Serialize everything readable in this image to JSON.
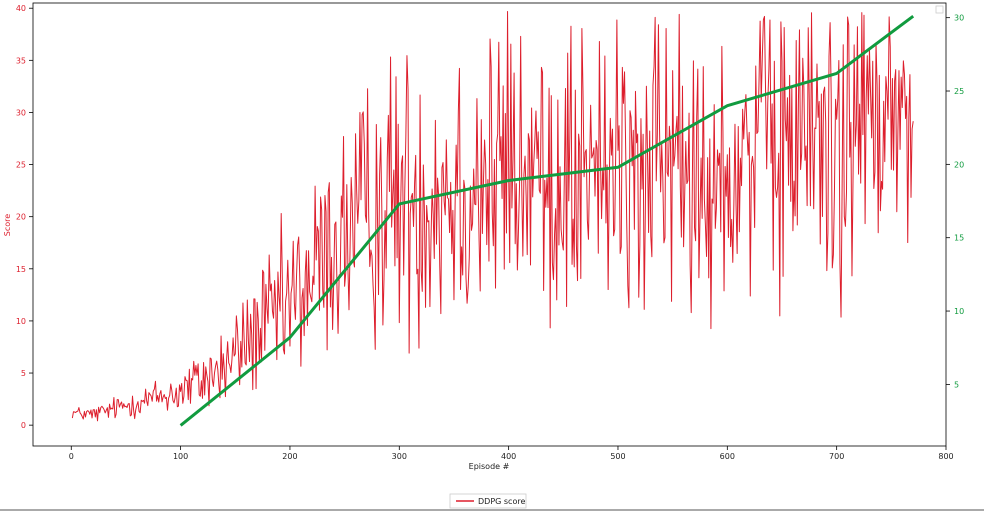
{
  "chart_data": {
    "type": "line",
    "title": "",
    "xlabel": "Episode #",
    "ylabel_left": "Score",
    "ylabel_right": "",
    "xlim": [
      -35,
      800
    ],
    "ylim_left": [
      -2,
      40.5
    ],
    "ylim_right": [
      0.8,
      31
    ],
    "x_ticks": [
      0,
      100,
      200,
      300,
      400,
      500,
      600,
      700,
      800
    ],
    "y_ticks_left": [
      0,
      5,
      10,
      15,
      20,
      25,
      30,
      35,
      40
    ],
    "y_ticks_right": [
      5,
      10,
      15,
      20,
      25,
      30
    ],
    "grid": false,
    "legend_location": "bottom-center",
    "colors": {
      "score": "#dd1f2d",
      "average": "#119b3f",
      "left_axis": "#dd1f2d",
      "right_axis": "#119b3f"
    },
    "series": [
      {
        "name": "DDPG score",
        "axis": "left",
        "episodes": [
          1,
          770
        ],
        "seed": 12345,
        "anchors": [
          [
            1,
            1.2
          ],
          [
            20,
            1.0
          ],
          [
            60,
            2.2
          ],
          [
            100,
            3.2
          ],
          [
            140,
            5.5
          ],
          [
            160,
            8.0
          ],
          [
            200,
            11.5
          ],
          [
            240,
            17.0
          ],
          [
            270,
            20.5
          ],
          [
            300,
            22.0
          ],
          [
            400,
            24.0
          ],
          [
            500,
            24.0
          ],
          [
            600,
            26.0
          ],
          [
            700,
            28.0
          ],
          [
            770,
            30.0
          ]
        ],
        "spread_anchors": [
          [
            1,
            0.5
          ],
          [
            60,
            1.2
          ],
          [
            100,
            2.0
          ],
          [
            150,
            4.0
          ],
          [
            200,
            7.0
          ],
          [
            260,
            10.0
          ],
          [
            300,
            12.5
          ],
          [
            400,
            13.5
          ],
          [
            500,
            13.0
          ],
          [
            600,
            13.5
          ],
          [
            700,
            13.5
          ],
          [
            770,
            12.0
          ]
        ]
      },
      {
        "name": "",
        "axis": "right",
        "x": [
          100,
          200,
          300,
          400,
          500,
          600,
          700,
          770
        ],
        "y": [
          2.2,
          8.2,
          17.3,
          18.9,
          19.8,
          24.0,
          26.2,
          30.1
        ]
      }
    ]
  },
  "legend": {
    "label": "DDPG score"
  }
}
